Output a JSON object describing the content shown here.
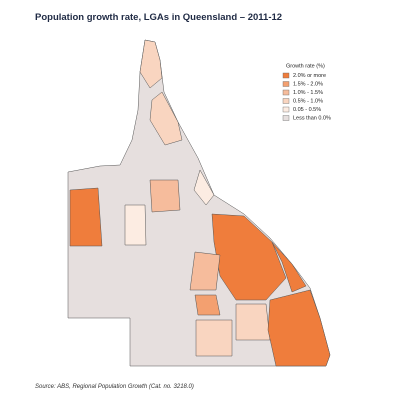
{
  "header": {
    "title": "Population growth rate, LGAs in Queensland – 2011-12"
  },
  "legend": {
    "title": "Growth rate (%)",
    "items": [
      {
        "label": "2.0% or more",
        "color": "#ef7d3c"
      },
      {
        "label": "1.5% - 2.0%",
        "color": "#f3a070"
      },
      {
        "label": "1.0% - 1.5%",
        "color": "#f6bc9c"
      },
      {
        "label": "0.5% - 1.0%",
        "color": "#f9d5c0"
      },
      {
        "label": "0.05 - 0.5%",
        "color": "#fcece2"
      },
      {
        "label": "Less than 0.0%",
        "color": "#e6dfde"
      }
    ]
  },
  "footer": {
    "source": "Source:  ABS, Regional Population Growth (Cat. no. 3218.0)"
  }
}
